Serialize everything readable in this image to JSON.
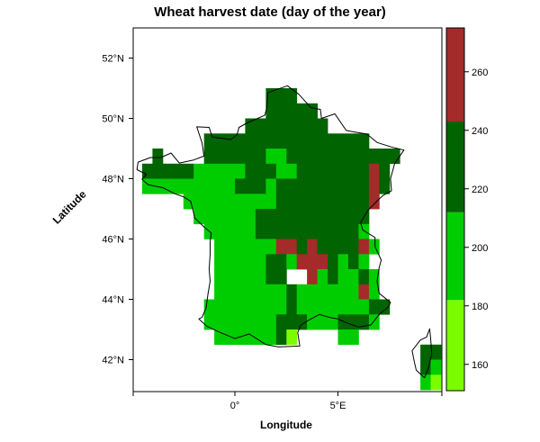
{
  "title": "Wheat harvest date (day of the year)",
  "xlabel": "Longitude",
  "ylabel": "Latitude",
  "x_ticks": [
    {
      "value": 0,
      "label": "0°"
    },
    {
      "value": 5,
      "label": "5°E"
    }
  ],
  "y_ticks": [
    {
      "value": 42,
      "label": "42°N"
    },
    {
      "value": 44,
      "label": "44°N"
    },
    {
      "value": 46,
      "label": "46°N"
    },
    {
      "value": 48,
      "label": "48°N"
    },
    {
      "value": 50,
      "label": "50°N"
    },
    {
      "value": 52,
      "label": "52°N"
    }
  ],
  "chart_data": {
    "type": "heatmap",
    "title": "Wheat harvest date (day of the year)",
    "xlabel": "Longitude",
    "ylabel": "Latitude",
    "xlim": [
      -5,
      10
    ],
    "ylim": [
      41,
      53
    ],
    "grid": false,
    "cell_size": {
      "lon": 0.5,
      "lat": 0.5
    },
    "legend": {
      "placement": "right",
      "tick_labels": [
        160,
        180,
        200,
        220,
        240,
        260
      ],
      "range": [
        151,
        275
      ],
      "classes": [
        {
          "from": 151,
          "to": 182,
          "color": "#7cfc00"
        },
        {
          "from": 182,
          "to": 212,
          "color": "#00cd00"
        },
        {
          "from": 212,
          "to": 243,
          "color": "#006400"
        },
        {
          "from": 243,
          "to": 275,
          "color": "#a52a2a"
        }
      ]
    },
    "note_rows": "each row: [latitude of cell centre, [[start_lon, end_lon, class_index], ...]]",
    "rows": [
      [
        50.75,
        [
          [
            1.5,
            3.0,
            2
          ]
        ]
      ],
      [
        50.25,
        [
          [
            1.5,
            4.0,
            2
          ]
        ]
      ],
      [
        49.75,
        [
          [
            0.5,
            4.5,
            2
          ]
        ]
      ],
      [
        49.25,
        [
          [
            -1.5,
            6.5,
            2
          ]
        ]
      ],
      [
        48.75,
        [
          [
            -4.0,
            -3.5,
            2
          ],
          [
            -1.5,
            1.5,
            2
          ],
          [
            1.5,
            2.5,
            1
          ],
          [
            2.5,
            8.0,
            2
          ]
        ]
      ],
      [
        48.25,
        [
          [
            -4.5,
            -2.0,
            2
          ],
          [
            -2.0,
            0.5,
            1
          ],
          [
            0.5,
            2.0,
            2
          ],
          [
            2.0,
            3.0,
            1
          ],
          [
            3.0,
            3.5,
            2
          ],
          [
            3.5,
            6.5,
            2
          ],
          [
            6.5,
            7.0,
            3
          ],
          [
            7.0,
            7.5,
            2
          ]
        ]
      ],
      [
        47.75,
        [
          [
            -4.5,
            0.0,
            1
          ],
          [
            0.0,
            1.5,
            2
          ],
          [
            1.5,
            2.0,
            1
          ],
          [
            2.0,
            6.5,
            2
          ],
          [
            6.5,
            7.0,
            3
          ],
          [
            7.0,
            7.5,
            2
          ]
        ]
      ],
      [
        47.25,
        [
          [
            -2.5,
            1.0,
            1
          ],
          [
            1.0,
            2.0,
            1
          ],
          [
            2.0,
            6.5,
            2
          ],
          [
            6.5,
            7.0,
            3
          ]
        ]
      ],
      [
        46.75,
        [
          [
            -2.0,
            1.0,
            1
          ],
          [
            1.0,
            6.0,
            2
          ],
          [
            6.0,
            6.5,
            2
          ]
        ]
      ],
      [
        46.25,
        [
          [
            -1.5,
            1.0,
            1
          ],
          [
            1.0,
            4.5,
            2
          ],
          [
            4.5,
            6.0,
            2
          ],
          [
            6.0,
            6.5,
            1
          ]
        ]
      ],
      [
        45.75,
        [
          [
            -1.0,
            2.0,
            1
          ],
          [
            2.0,
            3.0,
            3
          ],
          [
            3.0,
            3.5,
            2
          ],
          [
            3.5,
            4.0,
            3
          ],
          [
            4.0,
            6.0,
            2
          ],
          [
            6.0,
            6.5,
            3
          ],
          [
            6.5,
            7.0,
            1
          ]
        ]
      ],
      [
        45.25,
        [
          [
            -1.0,
            1.5,
            1
          ],
          [
            1.5,
            2.5,
            2
          ],
          [
            2.5,
            3.0,
            1
          ],
          [
            3.0,
            4.5,
            3
          ],
          [
            4.5,
            5.0,
            2
          ],
          [
            5.0,
            5.5,
            1
          ],
          [
            5.5,
            6.0,
            2
          ],
          [
            6.0,
            6.5,
            1
          ]
        ]
      ],
      [
        44.75,
        [
          [
            -1.0,
            1.5,
            1
          ],
          [
            1.5,
            2.5,
            2
          ],
          [
            3.5,
            4.0,
            3
          ],
          [
            4.0,
            4.5,
            1
          ],
          [
            4.5,
            5.0,
            2
          ],
          [
            5.0,
            6.0,
            1
          ],
          [
            6.0,
            6.5,
            2
          ],
          [
            6.5,
            7.0,
            1
          ]
        ]
      ],
      [
        44.25,
        [
          [
            -1.0,
            2.5,
            1
          ],
          [
            2.5,
            3.0,
            2
          ],
          [
            3.0,
            6.0,
            1
          ],
          [
            6.0,
            6.5,
            3
          ],
          [
            6.5,
            7.0,
            1
          ]
        ]
      ],
      [
        43.75,
        [
          [
            -1.5,
            2.5,
            1
          ],
          [
            2.5,
            3.0,
            2
          ],
          [
            3.0,
            6.5,
            1
          ],
          [
            6.5,
            7.5,
            2
          ]
        ]
      ],
      [
        43.25,
        [
          [
            -1.5,
            2.0,
            1
          ],
          [
            2.0,
            3.5,
            2
          ],
          [
            3.5,
            5.0,
            1
          ],
          [
            5.0,
            6.5,
            2
          ],
          [
            6.5,
            7.0,
            1
          ]
        ]
      ],
      [
        42.75,
        [
          [
            -1.0,
            1.0,
            1
          ],
          [
            1.0,
            2.0,
            1
          ],
          [
            2.0,
            2.5,
            2
          ],
          [
            2.5,
            3.0,
            0
          ],
          [
            5.0,
            6.0,
            1
          ]
        ]
      ],
      [
        42.25,
        [
          [
            9.0,
            9.5,
            2
          ],
          [
            9.5,
            10.0,
            2
          ]
        ]
      ],
      [
        41.75,
        [
          [
            9.0,
            9.5,
            2
          ],
          [
            9.5,
            10.0,
            1
          ]
        ]
      ],
      [
        41.25,
        [
          [
            9.0,
            9.5,
            1
          ],
          [
            9.5,
            10.0,
            0
          ]
        ]
      ]
    ]
  }
}
